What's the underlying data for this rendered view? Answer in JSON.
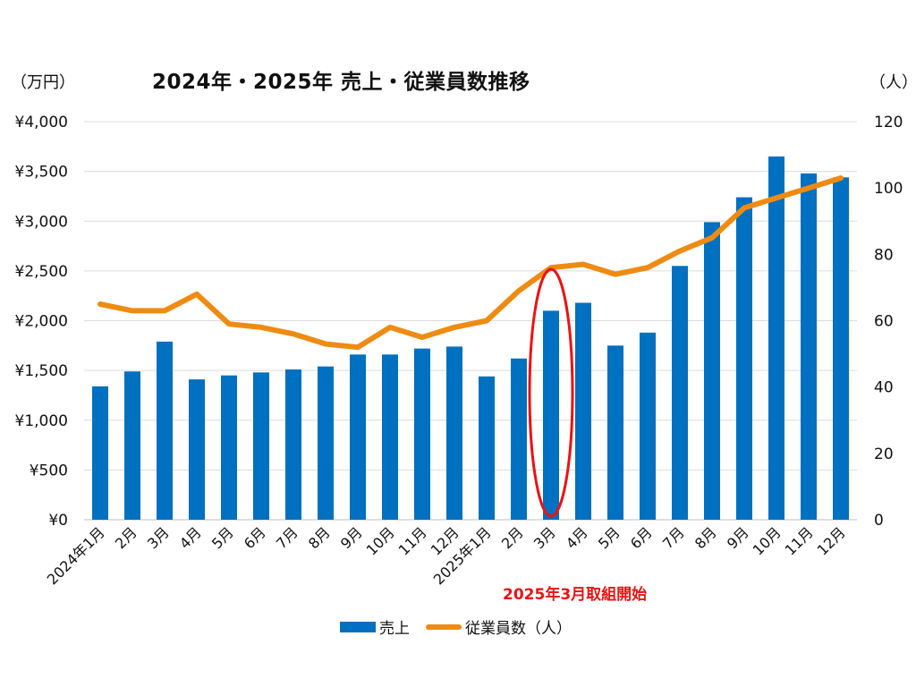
{
  "chart_data": {
    "type": "bar",
    "title": "2024年・2025年 売上・従業員数推移",
    "y_left_unit": "（万円）",
    "y_right_unit": "（人）",
    "annotation": "2025年3月取組開始",
    "categories": [
      "2024年1月",
      "2月",
      "3月",
      "4月",
      "5月",
      "6月",
      "7月",
      "8月",
      "9月",
      "10月",
      "11月",
      "12月",
      "2025年1月",
      "2月",
      "3月",
      "4月",
      "5月",
      "6月",
      "7月",
      "8月",
      "9月",
      "10月",
      "11月",
      "12月"
    ],
    "y_left_ticks": [
      "¥0",
      "¥500",
      "¥1,000",
      "¥1,500",
      "¥2,000",
      "¥2,500",
      "¥3,000",
      "¥3,500",
      "¥4,000"
    ],
    "y_right_ticks": [
      "0",
      "20",
      "40",
      "60",
      "80",
      "100",
      "120"
    ],
    "ylim_left": [
      0,
      4000
    ],
    "ylim_right": [
      0,
      120
    ],
    "grid": true,
    "legend_position": "bottom",
    "series": [
      {
        "name": "売上",
        "type": "bar",
        "axis": "left",
        "color": "#0070c0",
        "values": [
          1340,
          1490,
          1790,
          1410,
          1450,
          1480,
          1510,
          1540,
          1660,
          1660,
          1720,
          1740,
          1440,
          1620,
          2100,
          2180,
          1750,
          1880,
          2550,
          2990,
          3240,
          3650,
          3480,
          3440
        ]
      },
      {
        "name": "従業員数（人）",
        "type": "line",
        "axis": "right",
        "color": "#ee8b12",
        "values": [
          65,
          63,
          63,
          68,
          59,
          58,
          56,
          53,
          52,
          58,
          55,
          58,
          60,
          69,
          76,
          77,
          74,
          76,
          81,
          85,
          94,
          97,
          100,
          103
        ]
      }
    ],
    "highlight": {
      "category_index": 14,
      "shape": "ellipse",
      "color": "#ee1111"
    }
  }
}
